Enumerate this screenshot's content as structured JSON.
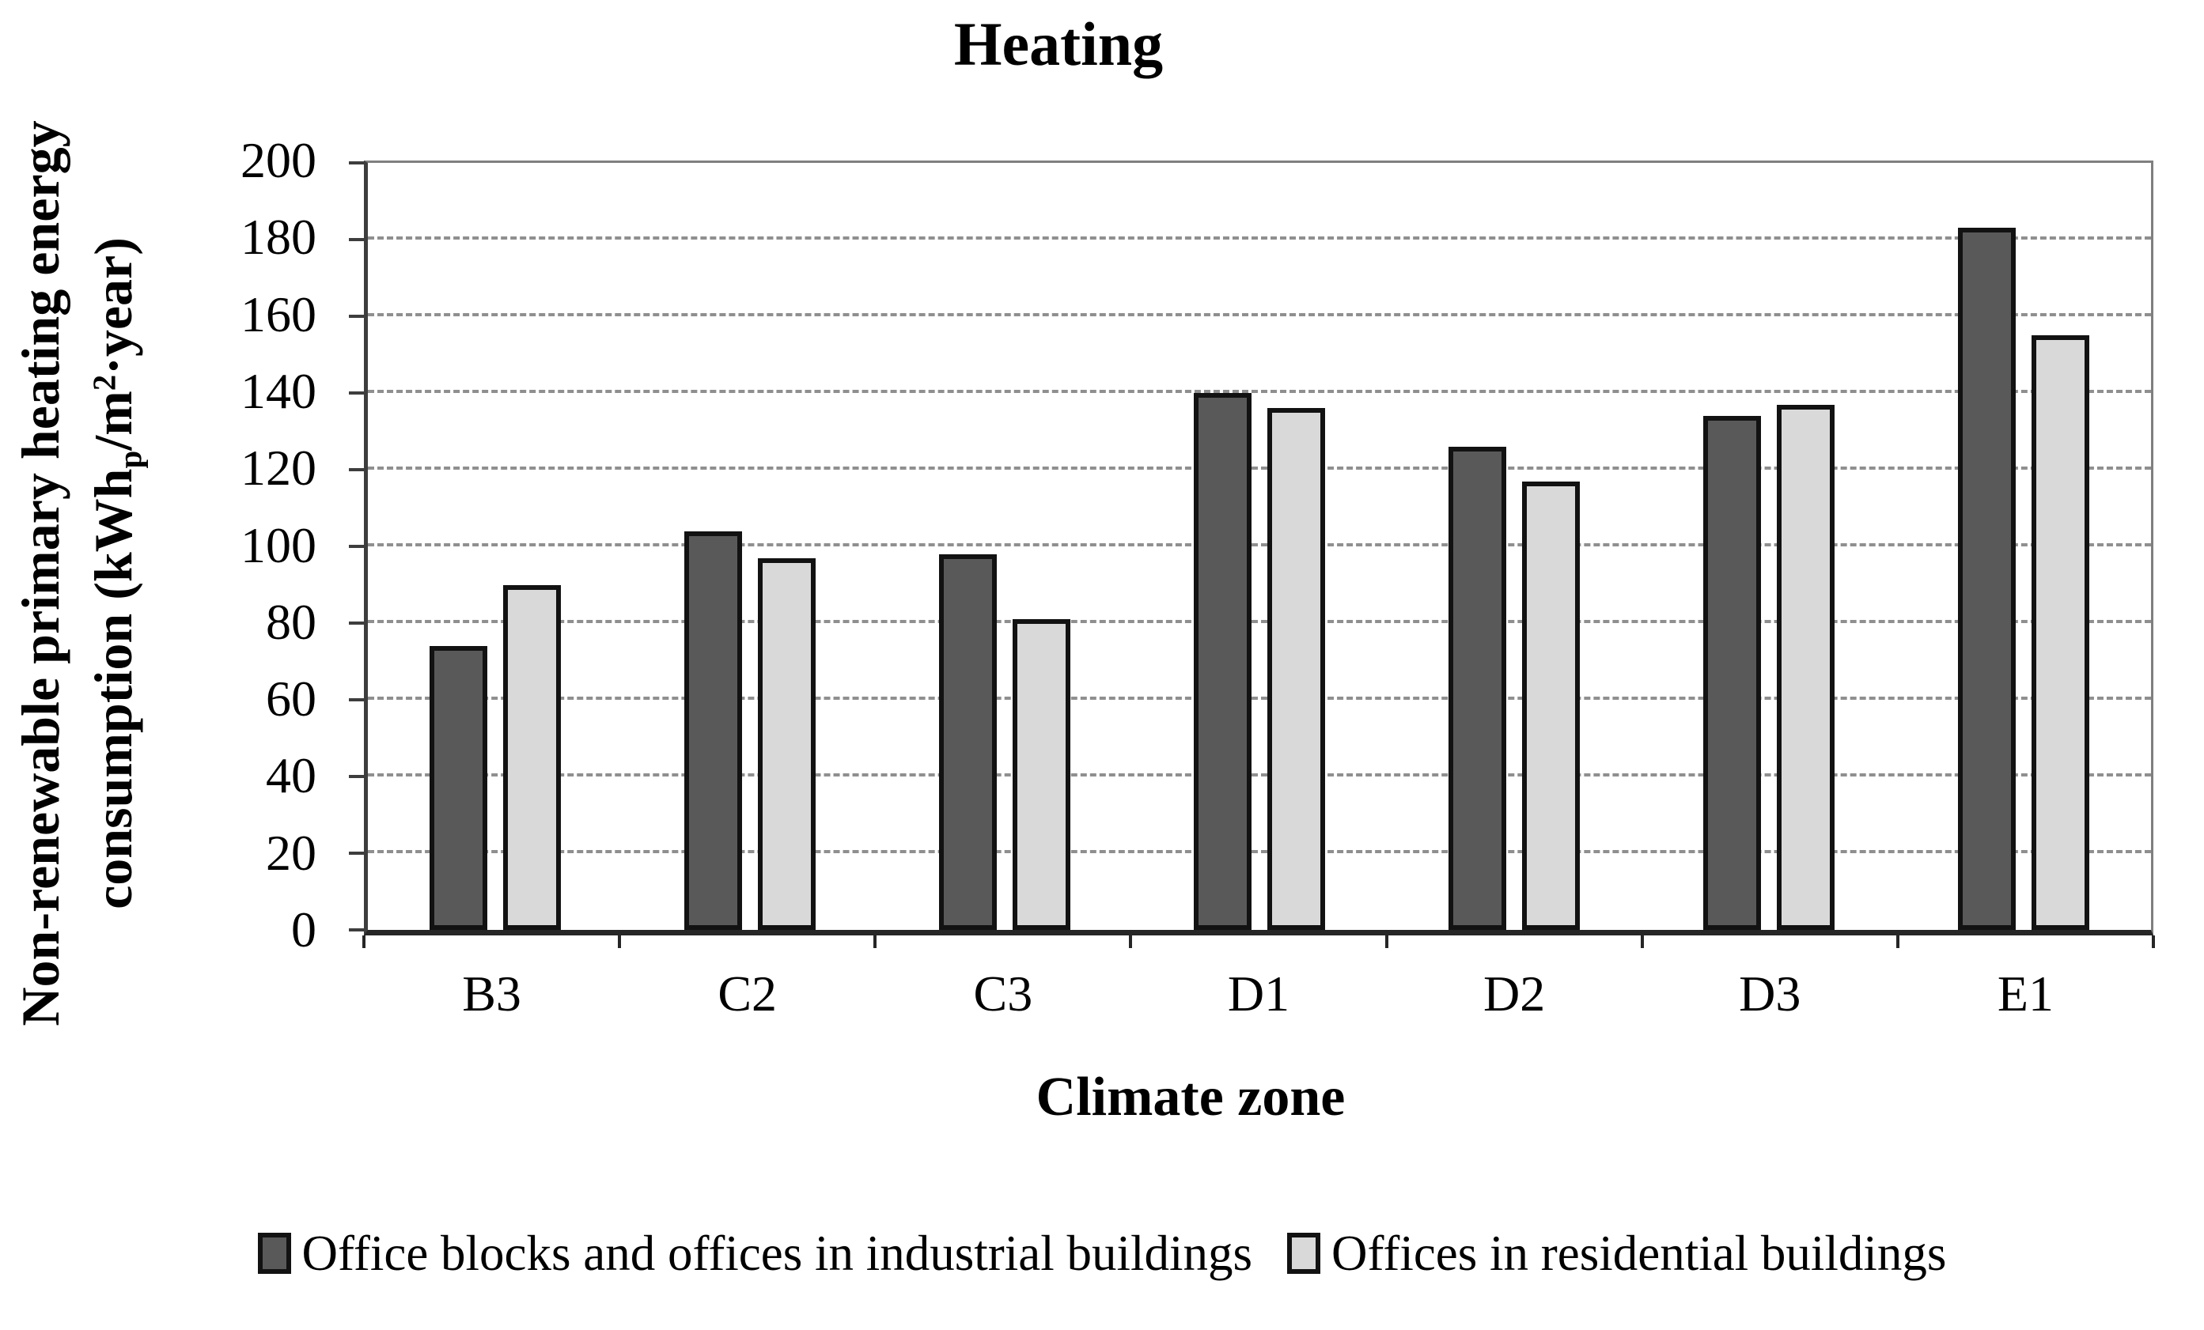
{
  "chart_data": {
    "type": "bar",
    "title": "Heating",
    "xlabel": "Climate zone",
    "ylabel": {
      "line1": "Non-renewable primary heating energy",
      "line2_pre": "consumption (kWh",
      "line2_sub": "p",
      "line2_mid": "/m",
      "line2_sup": "2",
      "line2_post": "·year)"
    },
    "categories": [
      "B3",
      "C2",
      "C3",
      "D1",
      "D2",
      "D3",
      "E1"
    ],
    "series": [
      {
        "name": "Office blocks and offices in industrial buildings",
        "color": "#595959",
        "values": [
          74,
          104,
          98,
          140,
          126,
          134,
          183
        ]
      },
      {
        "name": "Offices in residential buildings",
        "color": "#d9d9d9",
        "values": [
          90,
          97,
          81,
          136,
          117,
          137,
          155
        ]
      }
    ],
    "ylim": [
      0,
      200
    ],
    "ytick_step": 20,
    "ytick_labels": [
      "0",
      "20",
      "40",
      "60",
      "80",
      "100",
      "120",
      "140",
      "160",
      "180",
      "200"
    ],
    "grid": "horizontal-dashed",
    "legend_position": "bottom",
    "bar_border_color": "#121212",
    "gridline_color": "#8f8f8f"
  }
}
